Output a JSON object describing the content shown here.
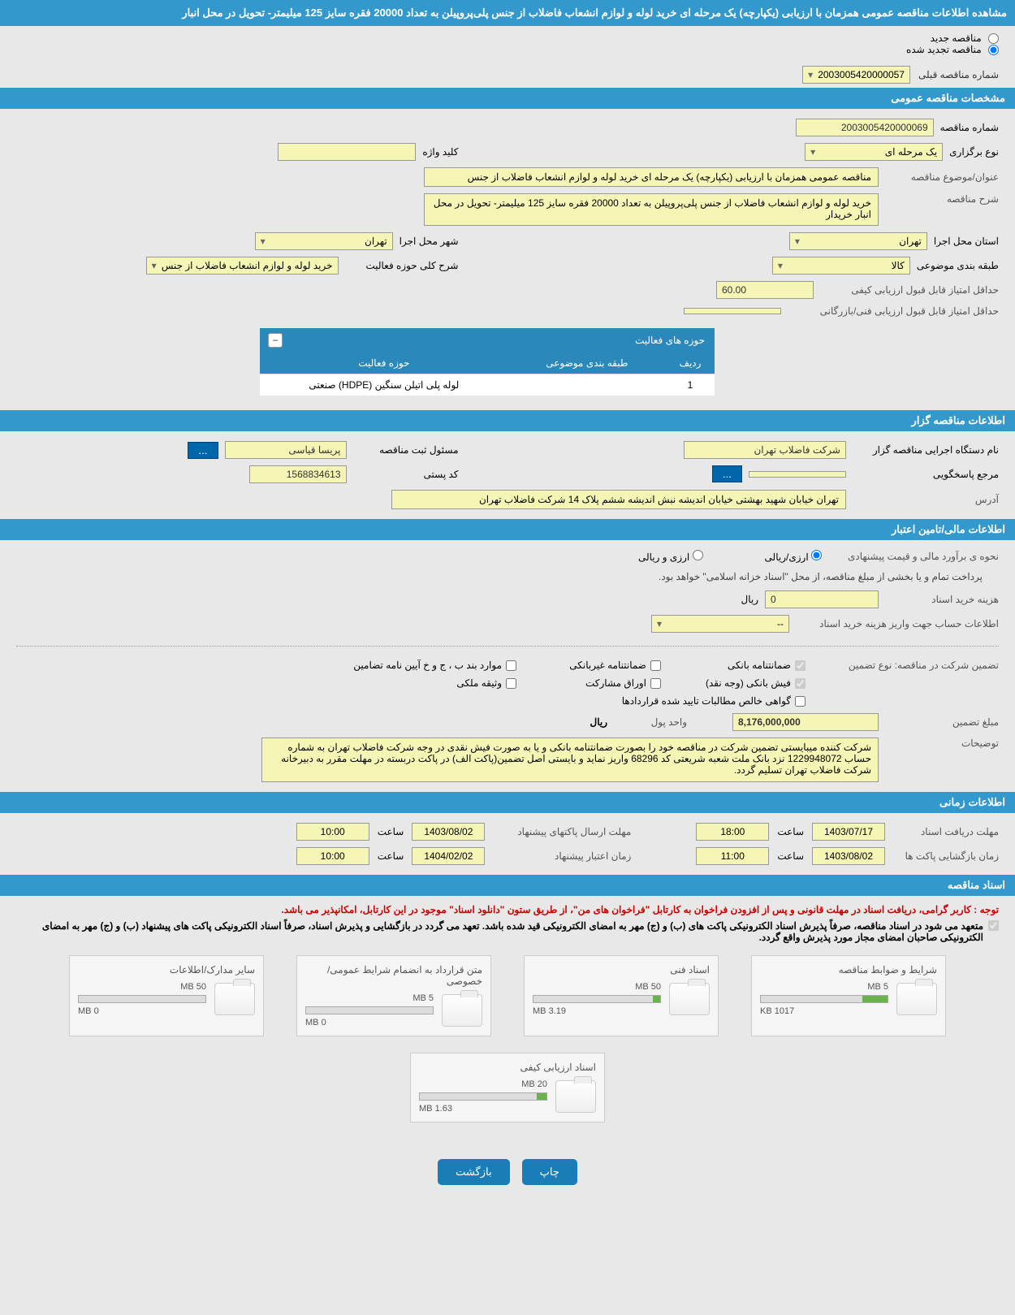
{
  "title": "مشاهده اطلاعات مناقصه عمومی همزمان با ارزیابی (یکپارچه) یک مرحله ای خرید لوله و لوازم انشعاب فاضلاب از جنس پلی‌پروپیلن به تعداد 20000 فقره سایز 125 میلیمتر- تحویل در محل انبار",
  "radio": {
    "new": "مناقصه جدید",
    "renewed": "مناقصه تجدید شده"
  },
  "prevTender": {
    "label": "شماره مناقصه قبلی",
    "value": "2003005420000057"
  },
  "sec": {
    "general": "مشخصات مناقصه عمومی",
    "organizer": "اطلاعات مناقصه گزار",
    "financial": "اطلاعات مالی/تامین اعتبار",
    "timing": "اطلاعات زمانی",
    "docs": "اسناد مناقصه"
  },
  "general": {
    "tenderNoLbl": "شماره مناقصه",
    "tenderNo": "2003005420000069",
    "typeLbl": "نوع برگزاری",
    "type": "یک مرحله ای",
    "keywordLbl": "کلید واژه",
    "keyword": "",
    "subjectLbl": "عنوان/موضوع مناقصه",
    "subject": "مناقصه عمومی همزمان با ارزیابی (یکپارچه) یک مرحله ای خرید لوله و لوازم انشعاب فاضلاب از جنس",
    "descLbl": "شرح مناقصه",
    "desc": "خرید لوله و لوازم انشعاب فاضلاب از جنس پلی‌پروپیلن به تعداد 20000 فقره سایز 125 میلیمتر- تحویل در محل انبار خریدار",
    "provinceLbl": "استان محل اجرا",
    "province": "تهران",
    "cityLbl": "شهر محل اجرا",
    "city": "تهران",
    "categoryLbl": "طبقه بندی موضوعی",
    "category": "کالا",
    "activityDescLbl": "شرح کلی حوزه فعالیت",
    "activityDesc": "خرید لوله و لوازم انشعاب فاضلاب از جنس",
    "minQualScoreLbl": "حداقل امتیاز قابل قبول ارزیابی کیفی",
    "minQualScore": "60.00",
    "minTechScoreLbl": "حداقل امتیاز قابل قبول ارزیابی فنی/بازرگانی",
    "minTechScore": ""
  },
  "activityTable": {
    "header": "حوزه های فعالیت",
    "cols": {
      "row": "ردیف",
      "category": "طبقه بندی موضوعی",
      "activity": "حوزه فعالیت"
    },
    "rows": [
      {
        "row": "1",
        "category": "",
        "activity": "لوله پلی اتیلن سنگین (HDPE) صنعتی"
      }
    ]
  },
  "organizer": {
    "orgLbl": "نام دستگاه اجرایی مناقصه گزار",
    "org": "شرکت فاضلاب تهران",
    "respLbl": "مسئول ثبت مناقصه",
    "resp": "پریسا  قیاسی",
    "contactLbl": "مرجع پاسخگویی",
    "contact": "",
    "postalLbl": "کد پستی",
    "postal": "1568834613",
    "addressLbl": "آدرس",
    "address": "تهران خیابان شهید بهشتی خیابان اندیشه نبش اندیشه ششم پلاک 14 شرکت فاضلاب تهران"
  },
  "financial": {
    "priceMethodLbl": "نحوه ی برآورد مالی و قیمت پیشنهادی",
    "opt1": "ارزی/ریالی",
    "opt2": "ارزی و ریالی",
    "payNote": "پرداخت تمام و یا بخشی از مبلغ مناقصه، از محل \"اسناد خزانه اسلامی\" خواهد بود.",
    "docCostLbl": "هزینه خرید اسناد",
    "docCost": "0",
    "currency": "ریال",
    "accountLbl": "اطلاعات حساب جهت واریز هزینه خرید اسناد",
    "account": "--",
    "guaranteeLbl": "تضمین شرکت در مناقصه:   نوع تضمین",
    "checks": {
      "bank": "ضمانتنامه بانکی",
      "nonbank": "ضمانتنامه غیربانکی",
      "other": "موارد بند ب ، ج و خ آیین نامه تضامین",
      "cash": "فیش بانکی (وجه نقد)",
      "bonds": "اوراق مشارکت",
      "property": "وثیقه ملکی",
      "verified": "گواهی خالص مطالبات تایید شده قراردادها"
    },
    "amountLbl": "مبلغ تضمین",
    "amount": "8,176,000,000",
    "unitLbl": "واحد پول",
    "unit": "ریال",
    "noteLbl": "توضیحات",
    "note": "شرکت کننده میبایستی تضمین شرکت در مناقصه خود را بصورت ضمانتنامه بانکی و یا به صورت فیش نقدی در وجه شرکت فاضلاب تهران به شماره حساب 1229948072 نزد بانک ملت شعبه شریعتی کد 68296 واریز نماید و بایستی اصل تضمین(پاکت الف) در پاکت دربسته در مهلت مقرر به دبیرخانه شرکت فاضلاب تهران تسلیم گردد."
  },
  "timing": {
    "docDeadlineLbl": "مهلت دریافت اسناد",
    "docDeadlineDate": "1403/07/17",
    "docDeadlineTime": "18:00",
    "envDeadlineLbl": "مهلت ارسال پاکتهای پیشنهاد",
    "envDeadlineDate": "1403/08/02",
    "envDeadlineTime": "10:00",
    "openLbl": "زمان بازگشایی پاکت ها",
    "openDate": "1403/08/02",
    "openTime": "11:00",
    "validLbl": "زمان اعتبار پیشنهاد",
    "validDate": "1404/02/02",
    "validTime": "10:00",
    "timeLbl": "ساعت"
  },
  "docs": {
    "redNote": "توجه : کاربر گرامی، دریافت اسناد در مهلت قانونی و پس از افزودن فراخوان به کارتابل \"فراخوان های من\"، از طریق ستون \"دانلود اسناد\" موجود در این کارتابل، امکانپذیر می باشد.",
    "commit": "متعهد می شود در اسناد مناقصه، صرفاً پذیرش اسناد الکترونیکی پاکت های (ب) و (ج) مهر به امضای الکترونیکی قید شده باشد. تعهد می گردد در بازگشایی و پذیرش اسناد، صرفاً اسناد الکترونیکی پاکت های پیشنهاد (ب) و (ج) مهر به امضای الکترونیکی صاحبان امضای مجاز مورد پذیرش واقع گردد.",
    "items": [
      {
        "title": "شرایط و ضوابط مناقصه",
        "cap": "5 MB",
        "used": "1017 KB",
        "pct": 20
      },
      {
        "title": "اسناد فنی",
        "cap": "50 MB",
        "used": "3.19 MB",
        "pct": 6
      },
      {
        "title": "متن قرارداد به انضمام شرایط عمومی/خصوصی",
        "cap": "5 MB",
        "used": "0 MB",
        "pct": 0
      },
      {
        "title": "سایر مدارک/اطلاعات",
        "cap": "50 MB",
        "used": "0 MB",
        "pct": 0
      },
      {
        "title": "اسناد ارزیابی کیفی",
        "cap": "20 MB",
        "used": "1.63 MB",
        "pct": 8
      }
    ]
  },
  "buttons": {
    "print": "چاپ",
    "back": "بازگشت"
  }
}
